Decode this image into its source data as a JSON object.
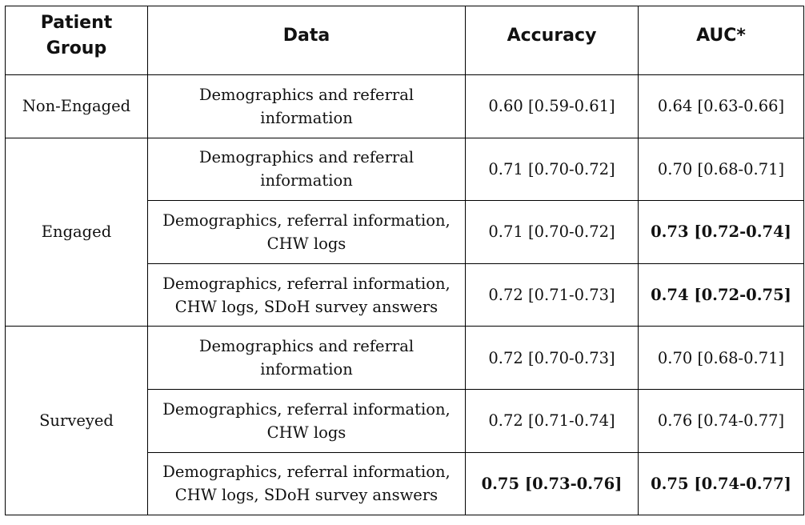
{
  "table": {
    "headers": [
      "Patient\nGroup",
      "Data",
      "Accuracy",
      "AUC*"
    ],
    "groups": [
      {
        "name": "Non-Engaged",
        "rows": [
          {
            "data_line1": "Demographics and referral",
            "data_line2": "information",
            "accuracy": "0.60 [0.59-0.61]",
            "auc": "0.64 [0.63-0.66]",
            "accuracy_bold": false,
            "auc_bold": false
          }
        ]
      },
      {
        "name": "Engaged",
        "rows": [
          {
            "data_line1": "Demographics and referral",
            "data_line2": "information",
            "accuracy": "0.71 [0.70-0.72]",
            "auc": "0.70 [0.68-0.71]",
            "accuracy_bold": false,
            "auc_bold": false
          },
          {
            "data_line1": "Demographics, referral information,",
            "data_line2": "CHW logs",
            "accuracy": "0.71 [0.70-0.72]",
            "auc": "0.73 [0.72-0.74]",
            "accuracy_bold": false,
            "auc_bold": true
          },
          {
            "data_line1": "Demographics, referral information,",
            "data_line2": "CHW logs, SDoH survey answers",
            "accuracy": "0.72 [0.71-0.73]",
            "auc": "0.74 [0.72-0.75]",
            "accuracy_bold": false,
            "auc_bold": true
          }
        ]
      },
      {
        "name": "Surveyed",
        "rows": [
          {
            "data_line1": "Demographics and referral",
            "data_line2": "information",
            "accuracy": "0.72 [0.70-0.73]",
            "auc": "0.70 [0.68-0.71]",
            "accuracy_bold": false,
            "auc_bold": false
          },
          {
            "data_line1": "Demographics, referral information,",
            "data_line2": "CHW logs",
            "accuracy": "0.72 [0.71-0.74]",
            "auc": "0.76 [0.74-0.77]",
            "accuracy_bold": false,
            "auc_bold": false
          },
          {
            "data_line1": "Demographics, referral information,",
            "data_line2": "CHW logs, SDoH survey answers",
            "accuracy": "0.75 [0.73-0.76]",
            "auc": "0.75 [0.74-0.77]",
            "accuracy_bold": true,
            "auc_bold": true
          }
        ]
      }
    ]
  }
}
